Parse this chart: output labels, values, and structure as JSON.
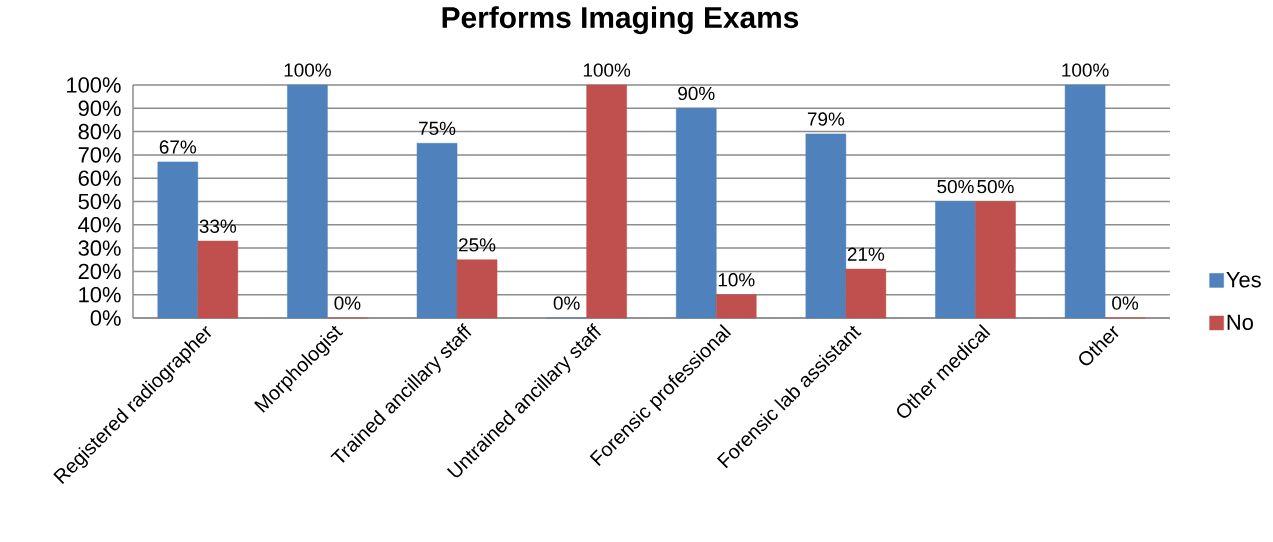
{
  "chart_data": {
    "type": "bar",
    "title": "Performs Imaging Exams",
    "categories": [
      "Registered radiographer",
      "Morphologist",
      "Trained ancillary staff",
      "Untrained ancillary staff",
      "Forensic professional",
      "Forensic lab assistant",
      "Other medical",
      "Other"
    ],
    "series": [
      {
        "name": "Yes",
        "color": "#4f81bd",
        "values": [
          67,
          100,
          75,
          0,
          90,
          79,
          50,
          100
        ],
        "value_labels": [
          "67%",
          "100%",
          "75%",
          "0%",
          "90%",
          "79%",
          "50%",
          "100%"
        ]
      },
      {
        "name": "No",
        "color": "#c0504d",
        "values": [
          33,
          0,
          25,
          100,
          10,
          21,
          50,
          0
        ],
        "value_labels": [
          "33%",
          "0%",
          "25%",
          "100%",
          "10%",
          "21%",
          "50%",
          "0%"
        ]
      }
    ],
    "ylim": [
      0,
      100
    ],
    "yticks": [
      {
        "value": 0,
        "label": "0%"
      },
      {
        "value": 10,
        "label": "10%"
      },
      {
        "value": 20,
        "label": "20%"
      },
      {
        "value": 30,
        "label": "30%"
      },
      {
        "value": 40,
        "label": "40%"
      },
      {
        "value": 50,
        "label": "50%"
      },
      {
        "value": 60,
        "label": "60%"
      },
      {
        "value": 70,
        "label": "70%"
      },
      {
        "value": 80,
        "label": "80%"
      },
      {
        "value": 90,
        "label": "90%"
      },
      {
        "value": 100,
        "label": "100%"
      }
    ],
    "grid": "y",
    "legend": "right"
  }
}
